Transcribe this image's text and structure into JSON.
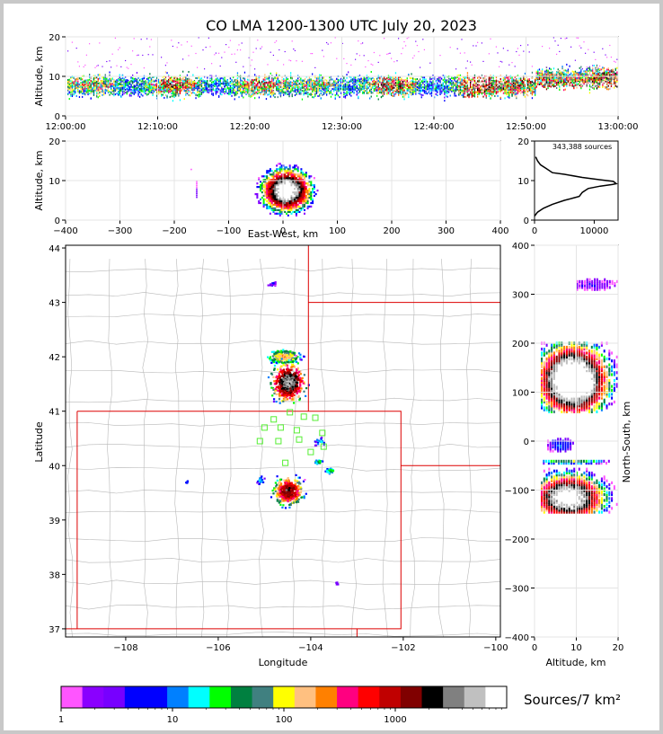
{
  "figure": {
    "title": "CO LMA 1200-1300 UTC July 20, 2023",
    "colorbar_label": "Sources/7 km²"
  },
  "chart_data": [
    {
      "type": "heatmap",
      "panel": "time-altitude",
      "ylabel": "Altitude, km",
      "xlabel": "",
      "xlim": [
        "12:00:00",
        "13:00:00"
      ],
      "ylim": [
        0,
        20
      ],
      "xticks": [
        "12:00:00",
        "12:10:00",
        "12:20:00",
        "12:30:00",
        "12:40:00",
        "12:50:00",
        "13:00:00"
      ],
      "yticks": [
        0,
        10,
        20
      ],
      "grid": true
    },
    {
      "type": "heatmap",
      "panel": "east-west-altitude",
      "ylabel": "Altitude, km",
      "xlabel": "East-West, km",
      "xlim": [
        -400,
        400
      ],
      "ylim": [
        0,
        20
      ],
      "xticks": [
        -400,
        -300,
        -200,
        -100,
        0,
        100,
        200,
        300,
        400
      ],
      "yticks": [
        0,
        10,
        20
      ],
      "grid": true
    },
    {
      "type": "line",
      "panel": "altitude-histogram",
      "annotation": "343,388 sources",
      "xlim": [
        0,
        14000
      ],
      "ylim": [
        0,
        20
      ],
      "xticks": [
        0,
        10000
      ],
      "yticks": [
        0,
        10,
        20
      ],
      "series": [
        {
          "x": [
            0,
            500,
            1500,
            3000,
            5000,
            6500,
            7500,
            8000,
            9000,
            11000,
            13000,
            13700,
            13200,
            11000,
            8000,
            5000,
            3000,
            2000,
            1000,
            500,
            200
          ],
          "y": [
            1,
            2,
            3,
            4,
            5,
            5.6,
            6,
            7,
            8,
            8.6,
            9,
            9.2,
            9.8,
            10.2,
            10.8,
            11.6,
            12,
            13,
            14,
            15,
            16
          ]
        }
      ]
    },
    {
      "type": "heatmap",
      "panel": "plan-view",
      "xlabel": "Longitude",
      "ylabel": "Latitude",
      "xlim": [
        -109.3,
        -99.9
      ],
      "ylim": [
        36.85,
        44.05
      ],
      "xticks": [
        -108,
        -106,
        -104,
        -102,
        -100
      ],
      "yticks": [
        37,
        38,
        39,
        40,
        41,
        42,
        43,
        44
      ],
      "stations": [
        [
          -104.8,
          40.85
        ],
        [
          -104.15,
          40.9
        ],
        [
          -103.9,
          40.88
        ],
        [
          -104.45,
          40.98
        ],
        [
          -105.0,
          40.7
        ],
        [
          -104.65,
          40.7
        ],
        [
          -104.3,
          40.65
        ],
        [
          -103.75,
          40.6
        ],
        [
          -105.1,
          40.45
        ],
        [
          -104.7,
          40.45
        ],
        [
          -104.25,
          40.48
        ],
        [
          -103.72,
          40.35
        ],
        [
          -104.0,
          40.25
        ],
        [
          -104.55,
          40.05
        ]
      ]
    },
    {
      "type": "heatmap",
      "panel": "altitude-north-south",
      "xlabel": "Altitude, km",
      "ylabel": "North-South, km",
      "xlim": [
        0,
        20
      ],
      "ylim": [
        -400,
        400
      ],
      "xticks": [
        0,
        10,
        20
      ],
      "yticks": [
        -400,
        -300,
        -200,
        -100,
        0,
        100,
        200,
        300,
        400
      ],
      "grid": true
    },
    {
      "type": "heatmap",
      "panel": "colorbar",
      "scale": "log",
      "ticks": [
        "1",
        "10",
        "100",
        "1000"
      ],
      "colors": [
        "#ff55ff",
        "#8a00ff",
        "#7700ff",
        "#0000ff",
        "#0000ff",
        "#0080ff",
        "#00ffff",
        "#00ff00",
        "#008040",
        "#408080",
        "#ffff00",
        "#ffc080",
        "#ff8000",
        "#ff0080",
        "#ff0000",
        "#c00000",
        "#800000",
        "#000000",
        "#808080",
        "#c0c0c0",
        "#ffffff"
      ]
    }
  ]
}
